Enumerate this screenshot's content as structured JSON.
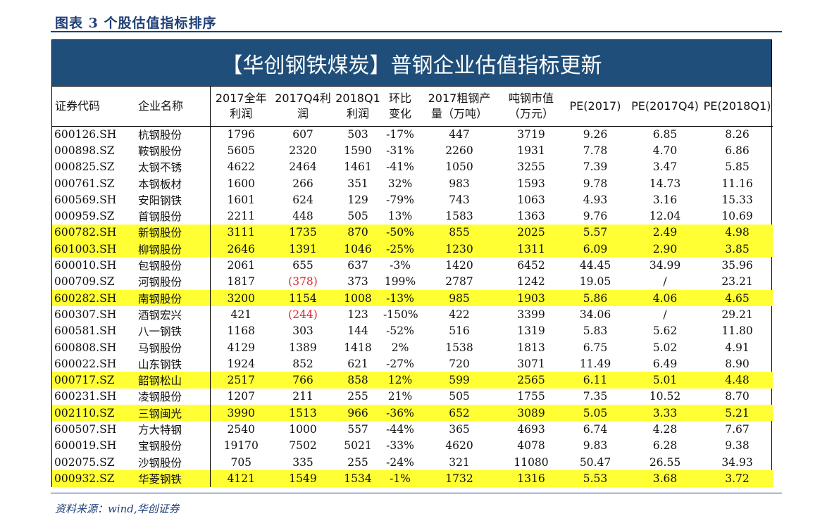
{
  "figure": {
    "title": "图表 3   个股估值指标排序"
  },
  "banner": "【华创钢铁煤炭】普钢企业估值指标更新",
  "headers": [
    "证券代码",
    "企业名称",
    "2017全年\n利润",
    "2017Q4利\n润",
    "2018Q1\n利润",
    "环比\n变化",
    "2017粗钢产\n量（万吨）",
    "吨钢市值\n（万元）",
    "PE(2017)",
    "PE(2017Q4)",
    "PE(2018Q1)"
  ],
  "rows": [
    {
      "code": "600126.SH",
      "name": "杭钢股份",
      "p2017": "1796",
      "p17q4": "607",
      "p18q1": "503",
      "chg": "-17%",
      "output": "447",
      "mv": "3719",
      "pe17": "9.26",
      "pe17q4": "6.85",
      "pe18q1": "8.26",
      "highlight": false,
      "negative_q4": false
    },
    {
      "code": "000898.SZ",
      "name": "鞍钢股份",
      "p2017": "5605",
      "p17q4": "2320",
      "p18q1": "1590",
      "chg": "-31%",
      "output": "2260",
      "mv": "1931",
      "pe17": "7.78",
      "pe17q4": "4.70",
      "pe18q1": "6.86",
      "highlight": false,
      "negative_q4": false
    },
    {
      "code": "000825.SZ",
      "name": "太钢不锈",
      "p2017": "4622",
      "p17q4": "2464",
      "p18q1": "1461",
      "chg": "-41%",
      "output": "1050",
      "mv": "3255",
      "pe17": "7.39",
      "pe17q4": "3.47",
      "pe18q1": "5.85",
      "highlight": false,
      "negative_q4": false
    },
    {
      "code": "000761.SZ",
      "name": "本钢板材",
      "p2017": "1600",
      "p17q4": "266",
      "p18q1": "351",
      "chg": "32%",
      "output": "983",
      "mv": "1593",
      "pe17": "9.78",
      "pe17q4": "14.73",
      "pe18q1": "11.16",
      "highlight": false,
      "negative_q4": false
    },
    {
      "code": "600569.SH",
      "name": "安阳钢铁",
      "p2017": "1601",
      "p17q4": "624",
      "p18q1": "129",
      "chg": "-79%",
      "output": "743",
      "mv": "1063",
      "pe17": "4.93",
      "pe17q4": "3.16",
      "pe18q1": "15.33",
      "highlight": false,
      "negative_q4": false
    },
    {
      "code": "000959.SZ",
      "name": "首钢股份",
      "p2017": "2211",
      "p17q4": "448",
      "p18q1": "505",
      "chg": "13%",
      "output": "1583",
      "mv": "1363",
      "pe17": "9.76",
      "pe17q4": "12.04",
      "pe18q1": "10.69",
      "highlight": false,
      "negative_q4": false
    },
    {
      "code": "600782.SH",
      "name": "新钢股份",
      "p2017": "3111",
      "p17q4": "1735",
      "p18q1": "870",
      "chg": "-50%",
      "output": "855",
      "mv": "2025",
      "pe17": "5.57",
      "pe17q4": "2.49",
      "pe18q1": "4.98",
      "highlight": true,
      "negative_q4": false
    },
    {
      "code": "601003.SH",
      "name": "柳钢股份",
      "p2017": "2646",
      "p17q4": "1391",
      "p18q1": "1046",
      "chg": "-25%",
      "output": "1230",
      "mv": "1311",
      "pe17": "6.09",
      "pe17q4": "2.90",
      "pe18q1": "3.85",
      "highlight": true,
      "negative_q4": false
    },
    {
      "code": "600010.SH",
      "name": "包钢股份",
      "p2017": "2061",
      "p17q4": "655",
      "p18q1": "637",
      "chg": "-3%",
      "output": "1420",
      "mv": "6452",
      "pe17": "44.45",
      "pe17q4": "34.99",
      "pe18q1": "35.96",
      "highlight": false,
      "negative_q4": false
    },
    {
      "code": "000709.SZ",
      "name": "河钢股份",
      "p2017": "1817",
      "p17q4": "(378)",
      "p18q1": "373",
      "chg": "199%",
      "output": "2787",
      "mv": "1242",
      "pe17": "19.05",
      "pe17q4": "/",
      "pe18q1": "23.21",
      "highlight": false,
      "negative_q4": true
    },
    {
      "code": "600282.SH",
      "name": "南钢股份",
      "p2017": "3200",
      "p17q4": "1154",
      "p18q1": "1008",
      "chg": "-13%",
      "output": "985",
      "mv": "1903",
      "pe17": "5.86",
      "pe17q4": "4.06",
      "pe18q1": "4.65",
      "highlight": true,
      "negative_q4": false
    },
    {
      "code": "600307.SH",
      "name": "酒钢宏兴",
      "p2017": "421",
      "p17q4": "(244)",
      "p18q1": "123",
      "chg": "-150%",
      "output": "422",
      "mv": "3399",
      "pe17": "34.06",
      "pe17q4": "/",
      "pe18q1": "29.21",
      "highlight": false,
      "negative_q4": true
    },
    {
      "code": "600581.SH",
      "name": "八一钢铁",
      "p2017": "1168",
      "p17q4": "303",
      "p18q1": "144",
      "chg": "-52%",
      "output": "516",
      "mv": "1319",
      "pe17": "5.83",
      "pe17q4": "5.62",
      "pe18q1": "11.80",
      "highlight": false,
      "negative_q4": false
    },
    {
      "code": "600808.SH",
      "name": "马钢股份",
      "p2017": "4129",
      "p17q4": "1389",
      "p18q1": "1418",
      "chg": "2%",
      "output": "1538",
      "mv": "1813",
      "pe17": "6.75",
      "pe17q4": "5.02",
      "pe18q1": "4.91",
      "highlight": false,
      "negative_q4": false
    },
    {
      "code": "600022.SH",
      "name": "山东钢铁",
      "p2017": "1924",
      "p17q4": "852",
      "p18q1": "621",
      "chg": "-27%",
      "output": "720",
      "mv": "3071",
      "pe17": "11.49",
      "pe17q4": "6.49",
      "pe18q1": "8.90",
      "highlight": false,
      "negative_q4": false
    },
    {
      "code": "000717.SZ",
      "name": "韶钢松山",
      "p2017": "2517",
      "p17q4": "766",
      "p18q1": "858",
      "chg": "12%",
      "output": "599",
      "mv": "2565",
      "pe17": "6.11",
      "pe17q4": "5.01",
      "pe18q1": "4.48",
      "highlight": true,
      "negative_q4": false
    },
    {
      "code": "600231.SH",
      "name": "凌钢股份",
      "p2017": "1207",
      "p17q4": "211",
      "p18q1": "255",
      "chg": "21%",
      "output": "505",
      "mv": "1755",
      "pe17": "7.35",
      "pe17q4": "10.52",
      "pe18q1": "8.70",
      "highlight": false,
      "negative_q4": false
    },
    {
      "code": "002110.SZ",
      "name": "三钢闽光",
      "p2017": "3990",
      "p17q4": "1513",
      "p18q1": "966",
      "chg": "-36%",
      "output": "652",
      "mv": "3089",
      "pe17": "5.05",
      "pe17q4": "3.33",
      "pe18q1": "5.21",
      "highlight": true,
      "negative_q4": false
    },
    {
      "code": "600507.SH",
      "name": "方大特钢",
      "p2017": "2540",
      "p17q4": "1000",
      "p18q1": "557",
      "chg": "-44%",
      "output": "365",
      "mv": "4693",
      "pe17": "6.74",
      "pe17q4": "4.28",
      "pe18q1": "7.67",
      "highlight": false,
      "negative_q4": false
    },
    {
      "code": "600019.SH",
      "name": "宝钢股份",
      "p2017": "19170",
      "p17q4": "7502",
      "p18q1": "5021",
      "chg": "-33%",
      "output": "4620",
      "mv": "4078",
      "pe17": "9.83",
      "pe17q4": "6.28",
      "pe18q1": "9.38",
      "highlight": false,
      "negative_q4": false
    },
    {
      "code": "002075.SZ",
      "name": "沙钢股份",
      "p2017": "705",
      "p17q4": "335",
      "p18q1": "255",
      "chg": "-24%",
      "output": "321",
      "mv": "11080",
      "pe17": "50.47",
      "pe17q4": "26.55",
      "pe18q1": "34.93",
      "highlight": false,
      "negative_q4": false
    },
    {
      "code": "000932.SZ",
      "name": "华菱钢铁",
      "p2017": "4121",
      "p17q4": "1549",
      "p18q1": "1534",
      "chg": "-1%",
      "output": "1732",
      "mv": "1316",
      "pe17": "5.53",
      "pe17q4": "3.68",
      "pe18q1": "3.72",
      "highlight": true,
      "negative_q4": false
    }
  ],
  "colors": {
    "banner": "#1f4e7a",
    "highlight": "#ffff33",
    "negative": "#d9282b",
    "title": "#1f3f78"
  },
  "source": "资料来源：wind,华创证券"
}
